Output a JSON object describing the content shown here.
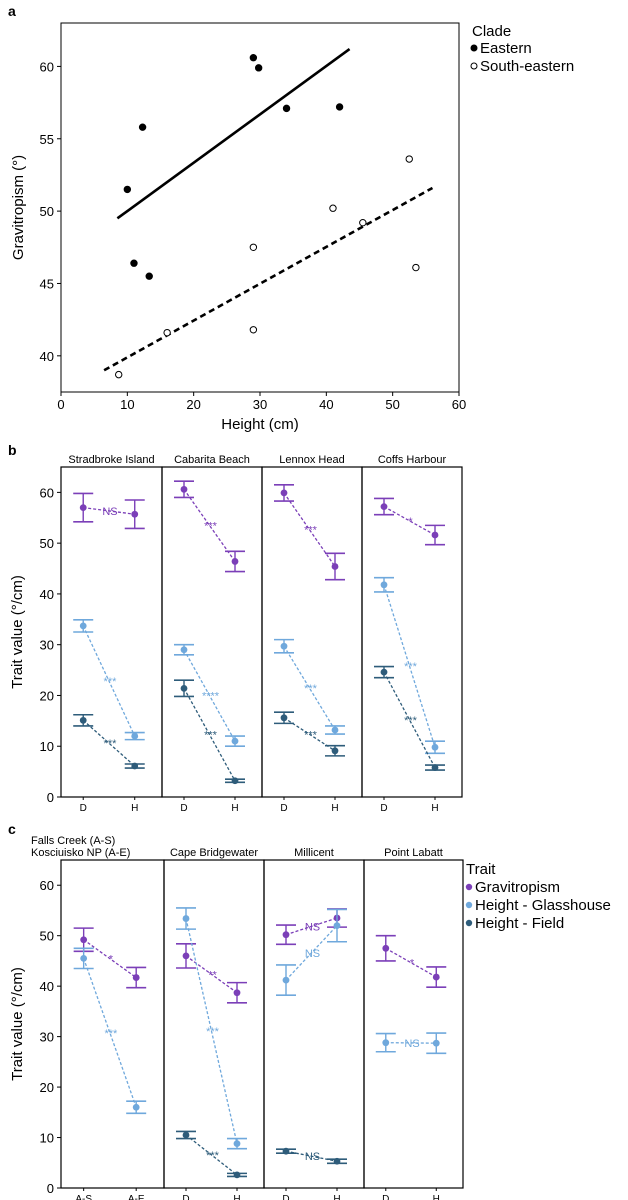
{
  "colors": {
    "gravitropism": "#7B3FB8",
    "height_glasshouse": "#6FA8DC",
    "height_field": "#2E5C7A",
    "black": "#000000"
  },
  "chart_data": [
    {
      "panel": "a",
      "type": "scatter",
      "xlabel": "Height (cm)",
      "ylabel": "Gravitropism (°)",
      "xlim": [
        0,
        60
      ],
      "ylim": [
        37.5,
        63
      ],
      "xticks": [
        "0",
        "10",
        "20",
        "30",
        "40",
        "50",
        "60"
      ],
      "yticks": [
        "40",
        "45",
        "50",
        "55",
        "60"
      ],
      "legend_title": "Clade",
      "legend_placement": "right",
      "series": [
        {
          "name": "Eastern",
          "marker": "filled",
          "points": [
            [
              10,
              51.5
            ],
            [
              11,
              46.4
            ],
            [
              12.3,
              55.8
            ],
            [
              13.3,
              45.5
            ],
            [
              29,
              60.6
            ],
            [
              29.8,
              59.9
            ],
            [
              34,
              57.1
            ],
            [
              42,
              57.2
            ]
          ],
          "trend": [
            [
              8.5,
              49.5
            ],
            [
              43.5,
              61.2
            ]
          ],
          "trend_style": "solid"
        },
        {
          "name": "South-eastern",
          "marker": "open",
          "points": [
            [
              8.7,
              38.7
            ],
            [
              16,
              41.6
            ],
            [
              29,
              47.5
            ],
            [
              29,
              41.8
            ],
            [
              41,
              50.2
            ],
            [
              45.5,
              49.2
            ],
            [
              52.5,
              53.6
            ],
            [
              53.5,
              46.1
            ]
          ],
          "trend": [
            [
              6.5,
              39.0
            ],
            [
              56,
              51.6
            ]
          ],
          "trend_style": "dashed"
        }
      ]
    },
    {
      "panel": "b",
      "type": "line",
      "ylabel": "Trait value (°/cm)",
      "ylim": [
        0,
        65
      ],
      "yticks": [
        "0",
        "10",
        "20",
        "30",
        "40",
        "50",
        "60"
      ],
      "facets": [
        {
          "title": [
            "Stradbroke Island"
          ],
          "x": [
            "D",
            "H"
          ],
          "series": [
            {
              "key": "gravitropism",
              "values": [
                57,
                55.7
              ],
              "err": [
                2.8,
                2.8
              ],
              "sig": "NS"
            },
            {
              "key": "height_glasshouse",
              "values": [
                33.7,
                12
              ],
              "err": [
                1.2,
                0.7
              ],
              "sig": "***"
            },
            {
              "key": "height_field",
              "values": [
                15.1,
                6.1
              ],
              "err": [
                1.1,
                0.4
              ],
              "sig": "***"
            }
          ]
        },
        {
          "title": [
            "Cabarita Beach"
          ],
          "x": [
            "D",
            "H"
          ],
          "series": [
            {
              "key": "gravitropism",
              "values": [
                60.6,
                46.4
              ],
              "err": [
                1.6,
                2.0
              ],
              "sig": "***"
            },
            {
              "key": "height_glasshouse",
              "values": [
                29,
                11
              ],
              "err": [
                1.0,
                1.0
              ],
              "sig": "****"
            },
            {
              "key": "height_field",
              "values": [
                21.4,
                3.2
              ],
              "err": [
                1.6,
                0.3
              ],
              "sig": "***"
            }
          ]
        },
        {
          "title": [
            "Lennox Head"
          ],
          "x": [
            "D",
            "H"
          ],
          "series": [
            {
              "key": "gravitropism",
              "values": [
                59.9,
                45.4
              ],
              "err": [
                1.6,
                2.6
              ],
              "sig": "***"
            },
            {
              "key": "height_glasshouse",
              "values": [
                29.7,
                13.2
              ],
              "err": [
                1.3,
                0.8
              ],
              "sig": "***"
            },
            {
              "key": "height_field",
              "values": [
                15.6,
                9.1
              ],
              "err": [
                1.1,
                1.0
              ],
              "sig": "***"
            }
          ]
        },
        {
          "title": [
            "Coffs Harbour"
          ],
          "x": [
            "D",
            "H"
          ],
          "series": [
            {
              "key": "gravitropism",
              "values": [
                57.2,
                51.6
              ],
              "err": [
                1.6,
                1.9
              ],
              "sig": "*"
            },
            {
              "key": "height_glasshouse",
              "values": [
                41.8,
                9.8
              ],
              "err": [
                1.4,
                1.2
              ],
              "sig": "***"
            },
            {
              "key": "height_field",
              "values": [
                24.6,
                5.8
              ],
              "err": [
                1.1,
                0.5
              ],
              "sig": "***"
            }
          ]
        }
      ]
    },
    {
      "panel": "c",
      "type": "line",
      "ylabel": "Trait value (°/cm)",
      "ylim": [
        0,
        65
      ],
      "yticks": [
        "0",
        "10",
        "20",
        "30",
        "40",
        "50",
        "60"
      ],
      "legend_title": "Trait",
      "legend_placement": "right",
      "legend": [
        {
          "key": "gravitropism",
          "label": "Gravitropism"
        },
        {
          "key": "height_glasshouse",
          "label": "Height - Glasshouse"
        },
        {
          "key": "height_field",
          "label": "Height - Field"
        }
      ],
      "facets": [
        {
          "title": [
            "Falls Creek (A-S)",
            "Kosciuisko NP (A-E)"
          ],
          "x": [
            "A-S",
            "A-E"
          ],
          "series": [
            {
              "key": "gravitropism",
              "values": [
                49.2,
                41.7
              ],
              "err": [
                2.3,
                2.0
              ],
              "sig": "*"
            },
            {
              "key": "height_glasshouse",
              "values": [
                45.5,
                16
              ],
              "err": [
                2.0,
                1.2
              ],
              "sig": "***"
            }
          ]
        },
        {
          "title": [
            "Cape Bridgewater"
          ],
          "x": [
            "D",
            "H"
          ],
          "series": [
            {
              "key": "gravitropism",
              "values": [
                46,
                38.7
              ],
              "err": [
                2.4,
                2.0
              ],
              "sig": "**"
            },
            {
              "key": "height_glasshouse",
              "values": [
                53.4,
                8.8
              ],
              "err": [
                2.1,
                1.0
              ],
              "sig": "***"
            },
            {
              "key": "height_field",
              "values": [
                10.5,
                2.6
              ],
              "err": [
                0.7,
                0.3
              ],
              "sig": "***"
            }
          ]
        },
        {
          "title": [
            "Millicent"
          ],
          "x": [
            "D",
            "H"
          ],
          "series": [
            {
              "key": "gravitropism",
              "values": [
                50.2,
                53.5
              ],
              "err": [
                1.9,
                1.8
              ],
              "sig": "NS"
            },
            {
              "key": "height_glasshouse",
              "values": [
                41.2,
                52
              ],
              "err": [
                3.0,
                3.2
              ],
              "sig": "NS"
            },
            {
              "key": "height_field",
              "values": [
                7.3,
                5.3
              ],
              "err": [
                0.4,
                0.4
              ],
              "sig": "NS"
            }
          ]
        },
        {
          "title": [
            "Point Labatt"
          ],
          "x": [
            "D",
            "H"
          ],
          "series": [
            {
              "key": "gravitropism",
              "values": [
                47.5,
                41.8
              ],
              "err": [
                2.5,
                2.0
              ],
              "sig": "*"
            },
            {
              "key": "height_glasshouse",
              "values": [
                28.8,
                28.7
              ],
              "err": [
                1.8,
                2.0
              ],
              "sig": "NS"
            }
          ]
        }
      ]
    }
  ]
}
